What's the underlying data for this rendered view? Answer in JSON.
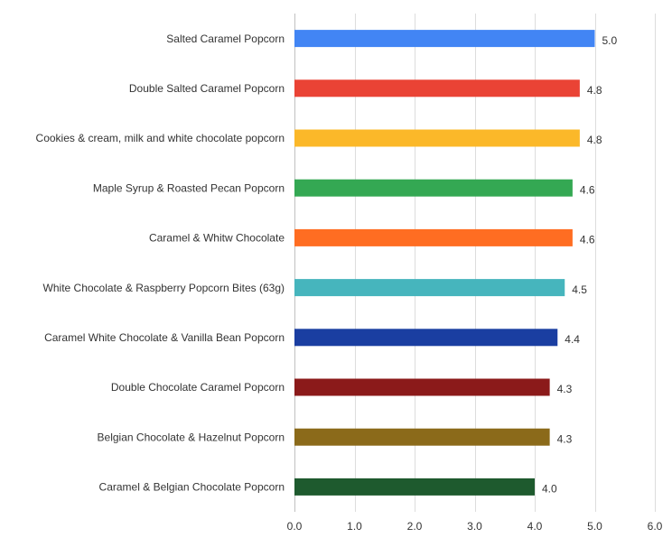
{
  "chart_data": {
    "type": "bar",
    "orientation": "horizontal",
    "title": "",
    "xlabel": "",
    "ylabel": "",
    "xlim": [
      0,
      6
    ],
    "x_ticks": [
      "0.0",
      "1.0",
      "2.0",
      "3.0",
      "4.0",
      "5.0",
      "6.0"
    ],
    "grid": true,
    "categories": [
      "Salted Caramel Popcorn",
      "Double Salted Caramel Popcorn",
      "Cookies & cream, milk and white chocolate popcorn",
      "Maple Syrup & Roasted Pecan Popcorn",
      "Caramel & Whitw Chocolate",
      "White Chocolate & Raspberry Popcorn Bites (63g)",
      "Caramel White Chocolate & Vanilla Bean Popcorn",
      "Double Chocolate Caramel Popcorn",
      "Belgian Chocolate & Hazelnut Popcorn",
      "Caramel & Belgian Chocolate Popcorn"
    ],
    "values": [
      5.0,
      4.75,
      4.75,
      4.63,
      4.63,
      4.5,
      4.38,
      4.25,
      4.25,
      4.0
    ],
    "value_labels": [
      "5.0",
      "4.8",
      "4.8",
      "4.6",
      "4.6",
      "4.5",
      "4.4",
      "4.3",
      "4.3",
      "4.0"
    ],
    "colors": [
      "#4285f4",
      "#ea4335",
      "#fbb829",
      "#34a853",
      "#ff6d22",
      "#46b5bd",
      "#1a3ea1",
      "#8b1a1a",
      "#8b6a1a",
      "#1e5a2e"
    ]
  }
}
